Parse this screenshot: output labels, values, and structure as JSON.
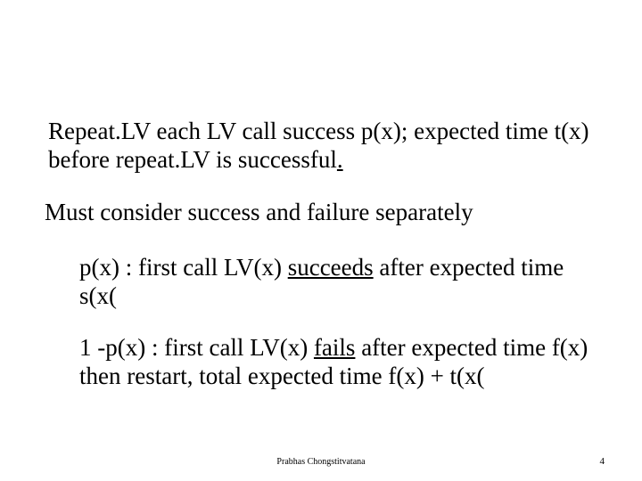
{
  "para1_a": "Repeat.LV   each LV call success p(x); expected time t(x)  before repeat.LV is successful",
  "para1_dot": ".",
  "para2": "Must consider success and failure separately",
  "para3_a": "p(x) : first call LV(x) ",
  "para3_u": "succeeds",
  "para3_b": " after expected time s(x(",
  "para4_a": "1 -p(x) : first call LV(x) ",
  "para4_u": "fails",
  "para4_b": " after expected time f(x) then restart, total expected time f(x) + t(x(",
  "footer_author": "Prabhas Chongstitvatana",
  "footer_page": "4",
  "colors": {
    "text": "#000000",
    "background": "#ffffff"
  },
  "typography": {
    "body_fontsize_pt": 20,
    "footer_fontsize_pt": 8,
    "font_family": "Times New Roman"
  }
}
